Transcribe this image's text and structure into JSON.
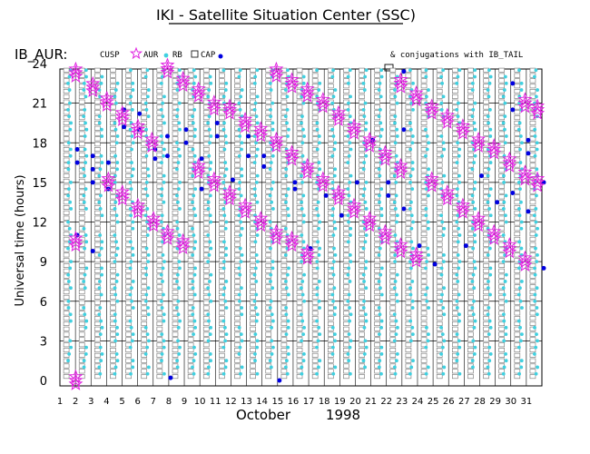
{
  "header": {
    "title": "IKI - Satellite Situation Center (SSC)",
    "satellite_label": "IB_AUR:",
    "legend_note": "& conjugations with IB_TAIL",
    "month": "October",
    "year": "1998"
  },
  "legend": [
    {
      "key": "cusp",
      "label": "CUSP",
      "symbol": "star",
      "color": "#e020e0"
    },
    {
      "key": "aur",
      "label": "AUR",
      "symbol": "dot",
      "color": "#40d0e0"
    },
    {
      "key": "rb",
      "label": "RB",
      "symbol": "square",
      "color": "#707070"
    },
    {
      "key": "cap",
      "label": "CAP",
      "symbol": "dot",
      "color": "#0000e0"
    }
  ],
  "colors": {
    "axis": "#000000",
    "cusp": "#e020e0",
    "aur": "#40d0e0",
    "rb": "#707070",
    "cap": "#0000e0",
    "grid": "#000000"
  },
  "chart_data": {
    "type": "scatter",
    "title": "IKI - Satellite Situation Center (SSC)",
    "xlabel": "October 1998",
    "ylabel": "Universal time (hours)",
    "xlim": [
      1,
      32
    ],
    "ylim": [
      0,
      24
    ],
    "x_ticks": [
      1,
      2,
      3,
      4,
      5,
      6,
      7,
      8,
      9,
      10,
      11,
      12,
      13,
      14,
      15,
      16,
      17,
      18,
      19,
      20,
      21,
      22,
      23,
      24,
      25,
      26,
      27,
      28,
      29,
      30,
      31
    ],
    "y_ticks": [
      0,
      3,
      6,
      9,
      12,
      15,
      18,
      21,
      24
    ],
    "series": [
      {
        "name": "CUSP",
        "note": "magenta stars, descending diagonal branches",
        "points": [
          [
            1.9,
            23.3
          ],
          [
            1.9,
            10.5
          ],
          [
            1.9,
            0
          ],
          [
            3.0,
            22.2
          ],
          [
            3.9,
            21.1
          ],
          [
            4.0,
            15.0
          ],
          [
            4.9,
            20.0
          ],
          [
            4.9,
            14.0
          ],
          [
            5.9,
            19.0
          ],
          [
            5.9,
            13.0
          ],
          [
            6.8,
            18.0
          ],
          [
            6.9,
            12.0
          ],
          [
            7.8,
            23.6
          ],
          [
            7.8,
            11.0
          ],
          [
            8.8,
            22.6
          ],
          [
            8.8,
            10.3
          ],
          [
            9.8,
            21.8
          ],
          [
            9.8,
            16.0
          ],
          [
            10.8,
            20.8
          ],
          [
            10.8,
            15.0
          ],
          [
            11.8,
            20.5
          ],
          [
            11.8,
            14.0
          ],
          [
            12.8,
            19.5
          ],
          [
            12.8,
            13.0
          ],
          [
            13.8,
            18.8
          ],
          [
            13.8,
            12.0
          ],
          [
            14.8,
            18.0
          ],
          [
            14.8,
            11.0
          ],
          [
            14.8,
            23.3
          ],
          [
            15.8,
            22.5
          ],
          [
            15.8,
            17.0
          ],
          [
            15.8,
            10.5
          ],
          [
            16.8,
            21.8
          ],
          [
            16.8,
            16.0
          ],
          [
            16.8,
            9.5
          ],
          [
            17.8,
            21.0
          ],
          [
            17.8,
            15.0
          ],
          [
            18.8,
            20.0
          ],
          [
            18.8,
            14.0
          ],
          [
            19.8,
            19.0
          ],
          [
            19.8,
            13.0
          ],
          [
            20.8,
            18.0
          ],
          [
            20.8,
            12.0
          ],
          [
            21.8,
            17.0
          ],
          [
            21.8,
            11.0
          ],
          [
            22.8,
            22.5
          ],
          [
            22.8,
            16.0
          ],
          [
            22.8,
            10.0
          ],
          [
            23.8,
            21.5
          ],
          [
            23.8,
            9.3
          ],
          [
            24.8,
            20.5
          ],
          [
            24.8,
            15.0
          ],
          [
            25.8,
            19.8
          ],
          [
            25.8,
            14.0
          ],
          [
            26.8,
            19.0
          ],
          [
            26.8,
            13.0
          ],
          [
            27.8,
            18.0
          ],
          [
            27.8,
            12.0
          ],
          [
            28.8,
            17.5
          ],
          [
            28.8,
            11.0
          ],
          [
            29.8,
            16.5
          ],
          [
            29.8,
            10.0
          ],
          [
            30.8,
            21.0
          ],
          [
            30.8,
            15.5
          ],
          [
            30.8,
            9.0
          ],
          [
            31.6,
            20.5
          ],
          [
            31.6,
            15.0
          ]
        ]
      },
      {
        "name": "AUR",
        "note": "cyan dots, near-continuous columns per day"
      },
      {
        "name": "RB",
        "note": "gray open squares, near-continuous columns per day"
      },
      {
        "name": "CAP",
        "note": "blue dots, clustered at mid and late UT hours",
        "points": [
          [
            2.0,
            17.5
          ],
          [
            2.0,
            16.5
          ],
          [
            2.0,
            11.0
          ],
          [
            3.0,
            17.0
          ],
          [
            3.0,
            16.0
          ],
          [
            3.0,
            15.0
          ],
          [
            3.0,
            9.8
          ],
          [
            4.0,
            16.5
          ],
          [
            4.0,
            14.5
          ],
          [
            5.0,
            20.5
          ],
          [
            5.0,
            19.2
          ],
          [
            6.0,
            20.2
          ],
          [
            6.0,
            19.0
          ],
          [
            7.0,
            17.5
          ],
          [
            7.0,
            16.8
          ],
          [
            7.8,
            18.5
          ],
          [
            7.8,
            17.0
          ],
          [
            8.0,
            0.2
          ],
          [
            9.0,
            19.0
          ],
          [
            9.0,
            18.0
          ],
          [
            10.0,
            16.8
          ],
          [
            10.0,
            14.5
          ],
          [
            11.0,
            19.5
          ],
          [
            11.0,
            18.5
          ],
          [
            12.0,
            15.2
          ],
          [
            13.0,
            18.5
          ],
          [
            13.0,
            17.0
          ],
          [
            14.0,
            17.0
          ],
          [
            14.0,
            16.2
          ],
          [
            15.0,
            0
          ],
          [
            16.0,
            15.0
          ],
          [
            16.0,
            14.5
          ],
          [
            17.0,
            10.0
          ],
          [
            18.0,
            14.0
          ],
          [
            19.0,
            12.5
          ],
          [
            20.0,
            15.0
          ],
          [
            21.0,
            18.2
          ],
          [
            22.0,
            14.0
          ],
          [
            22.0,
            15.0
          ],
          [
            23.0,
            23.4
          ],
          [
            23.0,
            19.0
          ],
          [
            23.0,
            13.0
          ],
          [
            24.0,
            10.2
          ],
          [
            25.0,
            8.8
          ],
          [
            27.0,
            10.2
          ],
          [
            28.0,
            15.5
          ],
          [
            29.0,
            13.5
          ],
          [
            30.0,
            22.5
          ],
          [
            30.0,
            20.5
          ],
          [
            30.0,
            14.2
          ],
          [
            31.0,
            18.2
          ],
          [
            31.0,
            17.2
          ],
          [
            31.0,
            12.8
          ],
          [
            32.0,
            8.5
          ],
          [
            32.0,
            15.0
          ]
        ]
      }
    ]
  }
}
